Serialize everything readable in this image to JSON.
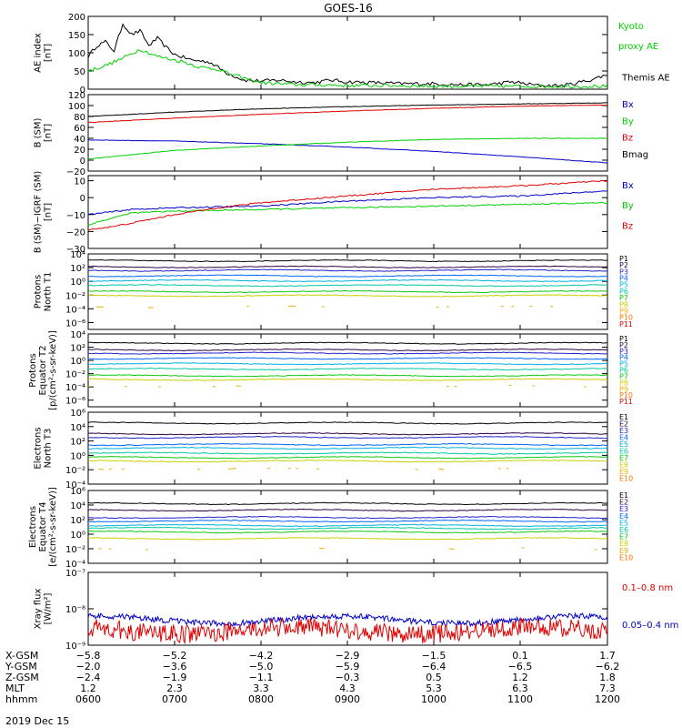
{
  "title": "GOES-16",
  "footer_date": "2019 Dec 15",
  "colors": {
    "black": "#000000",
    "blue": "#0000c8",
    "green": "#00d000",
    "red": "#e00000",
    "p": [
      "#000000",
      "#2b0040",
      "#2222cc",
      "#0066ff",
      "#00b0e0",
      "#00c8a0",
      "#10c810",
      "#c8d000",
      "#e8b000",
      "#ff7000",
      "#e00000"
    ]
  },
  "panels": [
    {
      "id": "ae",
      "ylabel": [
        "AE index",
        "[nT]"
      ],
      "scale": "linear",
      "ylim": [
        0,
        200
      ],
      "ticks": [
        0,
        50,
        100,
        150,
        200
      ],
      "tick_labels": [
        "0",
        "50",
        "100",
        "150",
        "200"
      ],
      "legend": [
        {
          "text": "Kyoto",
          "color": "#00d000"
        },
        {
          "text": "proxy AE",
          "color": "#00d000"
        },
        {
          "text": "Themis AE",
          "color": "#000000"
        }
      ]
    },
    {
      "id": "bsm",
      "ylabel": [
        "B (SM)",
        "[nT]"
      ],
      "scale": "linear",
      "ylim": [
        -20,
        120
      ],
      "ticks": [
        -20,
        0,
        20,
        40,
        60,
        80,
        100,
        120
      ],
      "tick_labels": [
        "−20",
        "0",
        "20",
        "40",
        "60",
        "80",
        "100",
        "120"
      ],
      "legend": [
        {
          "text": "Bx",
          "color": "#0000c8"
        },
        {
          "text": "By",
          "color": "#00d000"
        },
        {
          "text": "Bz",
          "color": "#e00000"
        },
        {
          "text": "Bmag",
          "color": "#000000"
        }
      ]
    },
    {
      "id": "digrf",
      "ylabel": [
        "B (SM)−IGRF (SM)",
        "[nT]"
      ],
      "scale": "linear",
      "ylim": [
        -30,
        13
      ],
      "ticks": [
        -30,
        -20,
        -10,
        0,
        10
      ],
      "tick_labels": [
        "−30",
        "−20",
        "−10",
        "0",
        "10"
      ],
      "legend": [
        {
          "text": "Bx",
          "color": "#0000c8"
        },
        {
          "text": "By",
          "color": "#00d000"
        },
        {
          "text": "Bz",
          "color": "#e00000"
        }
      ]
    },
    {
      "id": "pt1",
      "ylabel": [
        "Protons",
        "North T1"
      ],
      "scale": "log",
      "ylim": [
        -7,
        4
      ],
      "ticks": [
        -6,
        -4,
        -2,
        0,
        2,
        4
      ],
      "tick_labels": [
        "10⁻⁶",
        "10⁻⁴",
        "10⁻²",
        "10⁰",
        "10²",
        "10⁴"
      ],
      "legend": [
        {
          "text": "P1"
        },
        {
          "text": "P2"
        },
        {
          "text": "P3"
        },
        {
          "text": "P4"
        },
        {
          "text": "P5"
        },
        {
          "text": "P6"
        },
        {
          "text": "P7"
        },
        {
          "text": "P8"
        },
        {
          "text": "P9"
        },
        {
          "text": "P10"
        },
        {
          "text": "P11"
        }
      ]
    },
    {
      "id": "pt2",
      "ylabel": [
        "Protons",
        "Equator T2",
        "[p/(cm²-s-sr-keV)]"
      ],
      "scale": "log",
      "ylim": [
        -7,
        4
      ],
      "ticks": [
        -6,
        -4,
        -2,
        0,
        2,
        4
      ],
      "tick_labels": [
        "10⁻⁶",
        "10⁻⁴",
        "10⁻²",
        "10⁰",
        "10²",
        "10⁴"
      ],
      "legend": [
        {
          "text": "P1"
        },
        {
          "text": "P2"
        },
        {
          "text": "P3"
        },
        {
          "text": "P4"
        },
        {
          "text": "P5"
        },
        {
          "text": "P6"
        },
        {
          "text": "P7"
        },
        {
          "text": "P8"
        },
        {
          "text": "P9"
        },
        {
          "text": "P10"
        },
        {
          "text": "P11"
        }
      ]
    },
    {
      "id": "et3",
      "ylabel": [
        "Electrons",
        "North T3"
      ],
      "scale": "log",
      "ylim": [
        -4,
        6
      ],
      "ticks": [
        -4,
        -2,
        0,
        2,
        4,
        6
      ],
      "tick_labels": [
        "10⁻⁴",
        "10⁻²",
        "10⁰",
        "10²",
        "10⁴",
        "10⁶"
      ],
      "legend": [
        {
          "text": "E1"
        },
        {
          "text": "E2"
        },
        {
          "text": "E3"
        },
        {
          "text": "E4"
        },
        {
          "text": "E5"
        },
        {
          "text": "E6"
        },
        {
          "text": "E7"
        },
        {
          "text": "E8"
        },
        {
          "text": "E9"
        },
        {
          "text": "E10"
        }
      ]
    },
    {
      "id": "et4",
      "ylabel": [
        "Electrons",
        "Equator T4",
        "[e/(cm²-s-sr-keV)]"
      ],
      "scale": "log",
      "ylim": [
        -4,
        6
      ],
      "ticks": [
        -4,
        -2,
        0,
        2,
        4,
        6
      ],
      "tick_labels": [
        "10⁻⁴",
        "10⁻²",
        "10⁰",
        "10²",
        "10⁴",
        "10⁶"
      ],
      "legend": [
        {
          "text": "E1"
        },
        {
          "text": "E2"
        },
        {
          "text": "E3"
        },
        {
          "text": "E4"
        },
        {
          "text": "E5"
        },
        {
          "text": "E6"
        },
        {
          "text": "E7"
        },
        {
          "text": "E8"
        },
        {
          "text": "E9"
        },
        {
          "text": "E10"
        }
      ]
    },
    {
      "id": "xray",
      "ylabel": [
        "Xray flux",
        "[W/m²]"
      ],
      "scale": "log",
      "ylim": [
        -9,
        -7
      ],
      "ticks": [
        -9,
        -8,
        -7
      ],
      "tick_labels": [
        "10⁻⁹",
        "10⁻⁸",
        "10⁻⁷"
      ],
      "legend": [
        {
          "text": "0.1–0.8 nm",
          "color": "#e00000"
        },
        {
          "text": "0.05–0.4 nm",
          "color": "#0000c8"
        }
      ]
    }
  ],
  "bottom_axis": {
    "rows": [
      {
        "label": "X-GSM",
        "values": [
          "−5.8",
          "−5.2",
          "−4.2",
          "−2.9",
          "−1.5",
          "0.1",
          "1.7"
        ]
      },
      {
        "label": "Y-GSM",
        "values": [
          "−2.0",
          "−3.6",
          "−5.0",
          "−5.9",
          "−6.4",
          "−6.5",
          "−6.2"
        ]
      },
      {
        "label": "Z-GSM",
        "values": [
          "−2.4",
          "−1.9",
          "−1.1",
          "−0.3",
          "0.5",
          "1.2",
          "1.8"
        ]
      },
      {
        "label": "MLT",
        "values": [
          "1.2",
          "2.3",
          "3.3",
          "4.3",
          "5.3",
          "6.3",
          "7.3"
        ]
      },
      {
        "label": "hhmm",
        "values": [
          "0600",
          "0700",
          "0800",
          "0900",
          "1000",
          "1100",
          "1200"
        ]
      }
    ]
  },
  "chart_data": {
    "type": "line",
    "title": "GOES-16",
    "x_label": "hhmm",
    "x": [
      "0600",
      "0700",
      "0800",
      "0900",
      "1000",
      "1100",
      "1200"
    ],
    "xlim": [
      "0600",
      "1200"
    ],
    "series": [
      {
        "panel": "ae",
        "name": "Themis AE",
        "color": "#000000",
        "points": [
          [
            6.0,
            90
          ],
          [
            6.1,
            120
          ],
          [
            6.2,
            130
          ],
          [
            6.3,
            105
          ],
          [
            6.4,
            180
          ],
          [
            6.5,
            150
          ],
          [
            6.6,
            160
          ],
          [
            6.7,
            120
          ],
          [
            6.8,
            140
          ],
          [
            6.9,
            115
          ],
          [
            7.0,
            95
          ],
          [
            7.2,
            80
          ],
          [
            7.4,
            75
          ],
          [
            7.6,
            45
          ],
          [
            7.8,
            25
          ],
          [
            8.0,
            22
          ],
          [
            8.2,
            25
          ],
          [
            8.4,
            20
          ],
          [
            8.6,
            18
          ],
          [
            8.8,
            25
          ],
          [
            9.0,
            20
          ],
          [
            9.3,
            18
          ],
          [
            9.6,
            15
          ],
          [
            10.0,
            15
          ],
          [
            10.3,
            12
          ],
          [
            10.6,
            12
          ],
          [
            10.9,
            20
          ],
          [
            11.2,
            10
          ],
          [
            11.5,
            10
          ],
          [
            11.8,
            25
          ],
          [
            12.0,
            40
          ]
        ]
      },
      {
        "panel": "ae",
        "name": "Kyoto proxy AE",
        "color": "#00d000",
        "points": [
          [
            6.0,
            50
          ],
          [
            6.2,
            65
          ],
          [
            6.4,
            85
          ],
          [
            6.6,
            110
          ],
          [
            6.8,
            90
          ],
          [
            7.0,
            80
          ],
          [
            7.1,
            75
          ],
          [
            7.3,
            60
          ],
          [
            7.5,
            55
          ],
          [
            7.6,
            45
          ],
          [
            7.8,
            30
          ],
          [
            8.0,
            18
          ],
          [
            8.2,
            15
          ],
          [
            8.4,
            12
          ],
          [
            8.7,
            12
          ],
          [
            9.0,
            10
          ],
          [
            9.5,
            10
          ],
          [
            10.0,
            8
          ],
          [
            10.5,
            8
          ],
          [
            11.0,
            8
          ],
          [
            11.5,
            8
          ],
          [
            12.0,
            8
          ]
        ]
      },
      {
        "panel": "bsm",
        "name": "Bmag",
        "color": "#000000",
        "points": [
          [
            6.0,
            80
          ],
          [
            7.0,
            88
          ],
          [
            8.0,
            94
          ],
          [
            9.0,
            98
          ],
          [
            10.0,
            101
          ],
          [
            11.0,
            103
          ],
          [
            12.0,
            105
          ]
        ]
      },
      {
        "panel": "bsm",
        "name": "Bz",
        "color": "#e00000",
        "points": [
          [
            6.0,
            69
          ],
          [
            7.0,
            77
          ],
          [
            8.0,
            84
          ],
          [
            9.0,
            90
          ],
          [
            10.0,
            95
          ],
          [
            11.0,
            99
          ],
          [
            12.0,
            101
          ]
        ]
      },
      {
        "panel": "bsm",
        "name": "Bx",
        "color": "#0000c8",
        "points": [
          [
            6.0,
            37
          ],
          [
            7.0,
            35
          ],
          [
            8.0,
            30
          ],
          [
            9.0,
            24
          ],
          [
            10.0,
            16
          ],
          [
            11.0,
            6
          ],
          [
            12.0,
            -5
          ]
        ]
      },
      {
        "panel": "bsm",
        "name": "By",
        "color": "#00d000",
        "points": [
          [
            6.0,
            2
          ],
          [
            7.0,
            18
          ],
          [
            8.0,
            26
          ],
          [
            9.0,
            33
          ],
          [
            10.0,
            38
          ],
          [
            11.0,
            40
          ],
          [
            12.0,
            40
          ]
        ]
      },
      {
        "panel": "digrf",
        "name": "Bx",
        "color": "#0000c8",
        "points": [
          [
            6.0,
            -10
          ],
          [
            6.5,
            -7
          ],
          [
            7.0,
            -6
          ],
          [
            8.0,
            -5
          ],
          [
            9.0,
            -2
          ],
          [
            10.0,
            0
          ],
          [
            11.0,
            1
          ],
          [
            12.0,
            4
          ]
        ]
      },
      {
        "panel": "digrf",
        "name": "By",
        "color": "#00d000",
        "points": [
          [
            6.0,
            -16
          ],
          [
            6.5,
            -9
          ],
          [
            7.0,
            -8
          ],
          [
            8.0,
            -7
          ],
          [
            9.0,
            -6
          ],
          [
            10.0,
            -5
          ],
          [
            11.0,
            -4
          ],
          [
            12.0,
            -3
          ]
        ]
      },
      {
        "panel": "digrf",
        "name": "Bz",
        "color": "#e00000",
        "points": [
          [
            6.0,
            -19
          ],
          [
            6.3,
            -17
          ],
          [
            6.6,
            -14
          ],
          [
            7.0,
            -10
          ],
          [
            7.5,
            -6
          ],
          [
            8.0,
            -3
          ],
          [
            9.0,
            1
          ],
          [
            10.0,
            5
          ],
          [
            11.0,
            7
          ],
          [
            12.0,
            10
          ]
        ]
      },
      {
        "panel": "pt1",
        "name": "P1",
        "log10": 3.0
      },
      {
        "panel": "pt1",
        "name": "P2",
        "log10": 2.1
      },
      {
        "panel": "pt1",
        "name": "P3",
        "log10": 1.6
      },
      {
        "panel": "pt1",
        "name": "P4",
        "log10": 0.8
      },
      {
        "panel": "pt1",
        "name": "P5",
        "log10": 0.1
      },
      {
        "panel": "pt1",
        "name": "P6",
        "log10": -0.6
      },
      {
        "panel": "pt1",
        "name": "P7",
        "log10": -1.5
      },
      {
        "panel": "pt1",
        "name": "P8",
        "log10": -2.1
      },
      {
        "panel": "pt1",
        "name": "P9",
        "log10": -3.7
      },
      {
        "panel": "pt2",
        "name": "P1",
        "log10": 2.6
      },
      {
        "panel": "pt2",
        "name": "P2",
        "log10": 1.6
      },
      {
        "panel": "pt2",
        "name": "P3",
        "log10": 1.1
      },
      {
        "panel": "pt2",
        "name": "P4",
        "log10": 0.3
      },
      {
        "panel": "pt2",
        "name": "P5",
        "log10": -0.5
      },
      {
        "panel": "pt2",
        "name": "P6",
        "log10": -1.3
      },
      {
        "panel": "pt2",
        "name": "P7",
        "log10": -2.3
      },
      {
        "panel": "pt2",
        "name": "P8",
        "log10": -2.9
      },
      {
        "panel": "pt2",
        "name": "P9",
        "log10": -3.9
      },
      {
        "panel": "et3",
        "name": "E1",
        "log10": 4.5
      },
      {
        "panel": "et3",
        "name": "E2",
        "log10": 3.0
      },
      {
        "panel": "et3",
        "name": "E3",
        "log10": 2.5
      },
      {
        "panel": "et3",
        "name": "E4",
        "log10": 1.5
      },
      {
        "panel": "et3",
        "name": "E5",
        "log10": 1.0
      },
      {
        "panel": "et3",
        "name": "E6",
        "log10": 0.3
      },
      {
        "panel": "et3",
        "name": "E7",
        "log10": -0.3
      },
      {
        "panel": "et3",
        "name": "E8",
        "log10": -0.8
      },
      {
        "panel": "et3",
        "name": "E9",
        "log10": -1.9
      },
      {
        "panel": "et4",
        "name": "E1",
        "log10": 4.2
      },
      {
        "panel": "et4",
        "name": "E2",
        "log10": 3.3
      },
      {
        "panel": "et4",
        "name": "E3",
        "log10": 2.3
      },
      {
        "panel": "et4",
        "name": "E4",
        "log10": 1.8
      },
      {
        "panel": "et4",
        "name": "E5",
        "log10": 1.2
      },
      {
        "panel": "et4",
        "name": "E6",
        "log10": 0.8
      },
      {
        "panel": "et4",
        "name": "E7",
        "log10": 0.3
      },
      {
        "panel": "et4",
        "name": "E8",
        "log10": -0.6
      },
      {
        "panel": "et4",
        "name": "E9",
        "log10": -2.0
      },
      {
        "panel": "xray",
        "name": "0.05–0.4 nm",
        "log10": -8.3
      },
      {
        "panel": "xray",
        "name": "0.1–0.8 nm",
        "log10": -8.6
      }
    ]
  }
}
